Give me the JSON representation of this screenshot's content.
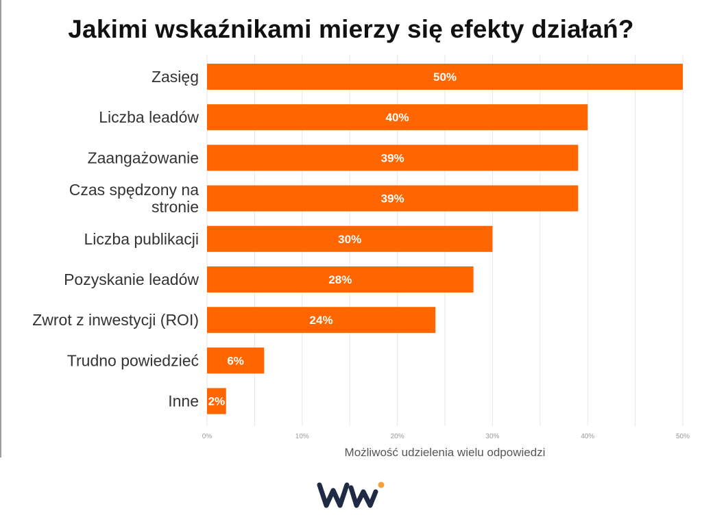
{
  "chart_data": {
    "type": "bar",
    "orientation": "horizontal",
    "title": "Jakimi wskaźnikami mierzy się efekty działań?",
    "xlabel": "Możliwość udzielenia wielu odpowiedzi",
    "ylabel": "",
    "xlim": [
      0,
      50
    ],
    "xticks": [
      0,
      10,
      20,
      30,
      40,
      50
    ],
    "tick_suffix": "%",
    "grid": true,
    "bar_color": "#ff6600",
    "categories": [
      [
        "Zasięg"
      ],
      [
        "Liczba leadów"
      ],
      [
        "Zaangażowanie"
      ],
      [
        "Czas spędzony na",
        "stronie"
      ],
      [
        "Liczba publikacji"
      ],
      [
        "Pozyskanie leadów"
      ],
      [
        "Zwrot z inwestycji (ROI)"
      ],
      [
        "Trudno powiedzieć"
      ],
      [
        "Inne"
      ]
    ],
    "values": [
      50,
      40,
      39,
      39,
      30,
      28,
      24,
      6,
      2
    ],
    "value_labels": [
      "50%",
      "40%",
      "39%",
      "39%",
      "30%",
      "28%",
      "24%",
      "6%",
      "2%"
    ]
  },
  "logo": {
    "name": "brand-logo",
    "colors": {
      "dark": "#1f2a44",
      "accent": "#f5a03a"
    }
  }
}
